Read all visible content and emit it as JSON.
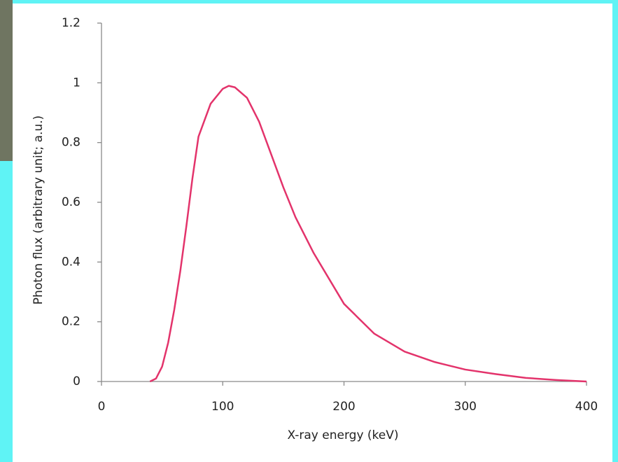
{
  "chart_data": {
    "type": "line",
    "x_label": "X-ray energy (keV)",
    "y_label": "Photon flux (arbitrary unit; a.u.)",
    "x": [
      40,
      45,
      50,
      55,
      60,
      65,
      70,
      75,
      80,
      90,
      100,
      105,
      110,
      120,
      130,
      140,
      150,
      160,
      175,
      200,
      225,
      250,
      275,
      300,
      325,
      350,
      375,
      400
    ],
    "series": [
      {
        "color": "#e3336b",
        "values": [
          0,
          0.01,
          0.05,
          0.13,
          0.24,
          0.37,
          0.52,
          0.68,
          0.82,
          0.93,
          0.98,
          0.99,
          0.985,
          0.95,
          0.87,
          0.76,
          0.65,
          0.55,
          0.43,
          0.26,
          0.16,
          0.1,
          0.065,
          0.04,
          0.025,
          0.012,
          0.005,
          0
        ]
      }
    ],
    "xlim": [
      0,
      400
    ],
    "xticks": [
      0,
      100,
      200,
      300,
      400
    ],
    "ylim": [
      0,
      1.2
    ],
    "yticks": [
      0,
      0.2,
      0.4,
      0.6,
      0.8,
      1,
      1.2
    ],
    "grid": false
  }
}
